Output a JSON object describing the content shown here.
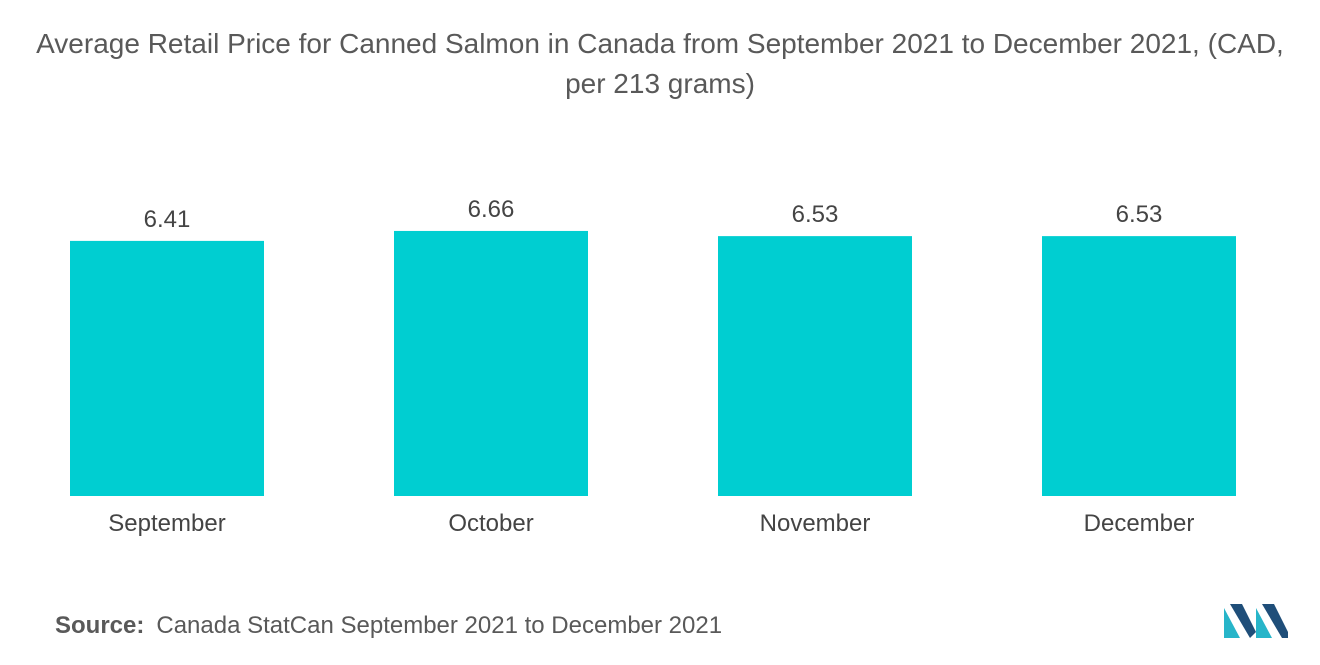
{
  "title": "Average Retail Price for Canned Salmon in Canada from September 2021 to December 2021, (CAD, per 213 grams)",
  "source": {
    "label": "Source:",
    "text": "Canada StatCan September 2021 to December 2021"
  },
  "logo": {
    "icon": "mordor-intelligence-logo-icon",
    "colors": [
      "#1f4e79",
      "#27b5c9"
    ]
  },
  "colors": {
    "bar": "#00ced1",
    "text": "#444444",
    "title": "#595959"
  },
  "chart_data": {
    "type": "bar",
    "title": "Average Retail Price for Canned Salmon in Canada from September 2021 to December 2021, (CAD, per 213 grams)",
    "categories": [
      "September",
      "October",
      "November",
      "December"
    ],
    "values": [
      6.41,
      6.66,
      6.53,
      6.53
    ],
    "value_labels": [
      "6.41",
      "6.66",
      "6.53",
      "6.53"
    ],
    "xlabel": "",
    "ylabel": "",
    "ylim": [
      0,
      6.91
    ],
    "grid": false,
    "legend": "none",
    "show_y_axis": false
  }
}
